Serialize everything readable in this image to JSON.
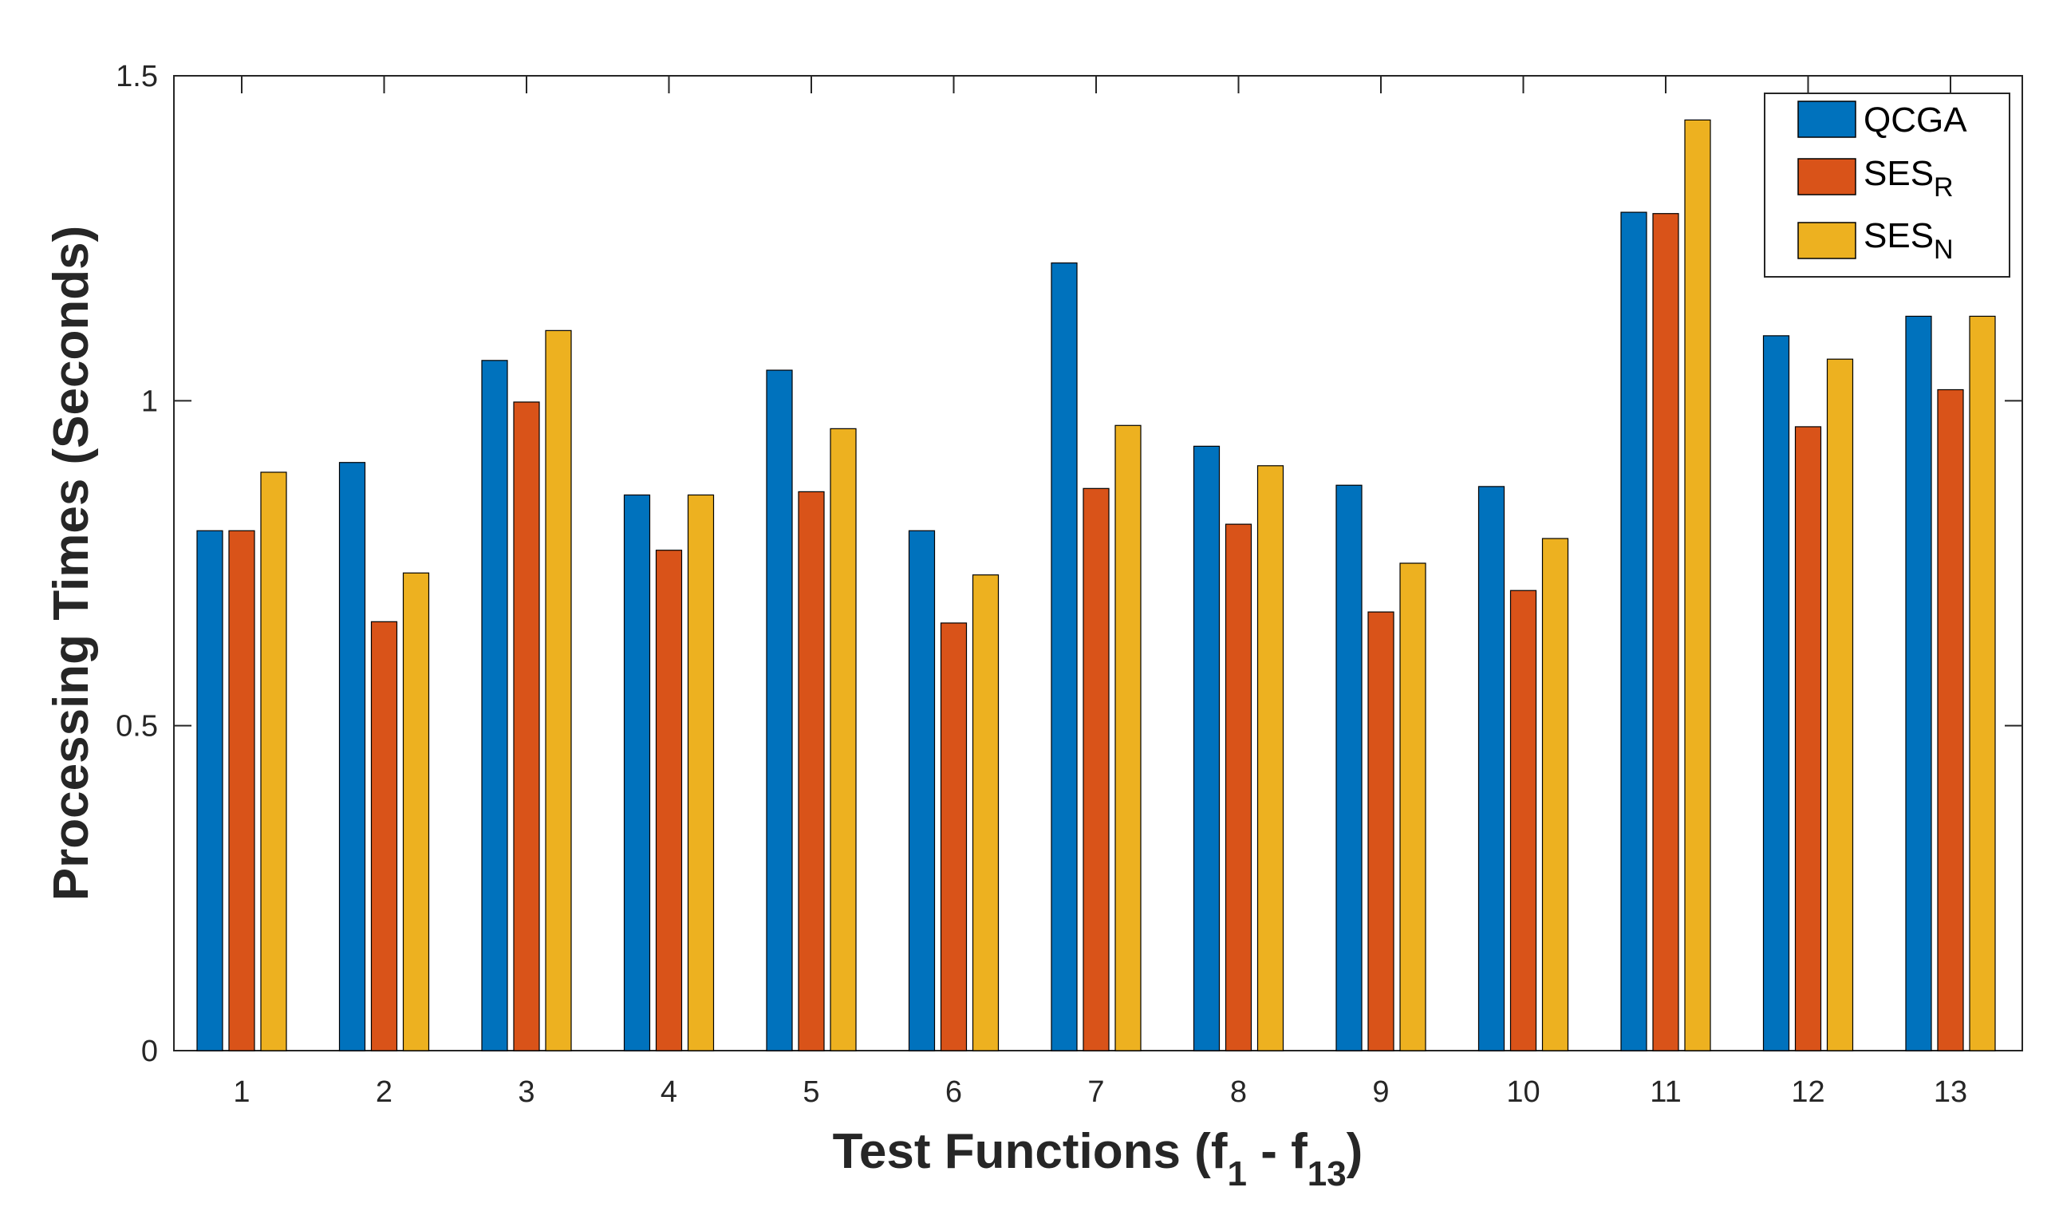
{
  "chart_data": {
    "type": "bar",
    "categories": [
      "1",
      "2",
      "3",
      "4",
      "5",
      "6",
      "7",
      "8",
      "9",
      "10",
      "11",
      "12",
      "13"
    ],
    "series": [
      {
        "name": "QCGA",
        "color": "#0072BD",
        "values": [
          0.8,
          0.905,
          1.062,
          0.855,
          1.047,
          0.8,
          1.212,
          0.93,
          0.87,
          0.868,
          1.29,
          1.1,
          1.13
        ]
      },
      {
        "name": "SES",
        "subscript": "R",
        "color": "#D95319",
        "values": [
          0.8,
          0.66,
          0.998,
          0.77,
          0.86,
          0.658,
          0.865,
          0.81,
          0.675,
          0.708,
          1.288,
          0.96,
          1.017
        ]
      },
      {
        "name": "SES",
        "subscript": "N",
        "color": "#EDB120",
        "values": [
          0.89,
          0.735,
          1.108,
          0.855,
          0.957,
          0.732,
          0.962,
          0.9,
          0.75,
          0.788,
          1.432,
          1.064,
          1.13
        ]
      }
    ],
    "xlabel": {
      "prefix": "Test Functions (f",
      "sub1": "1",
      "mid": " - f",
      "sub2": "13",
      "suffix": ")"
    },
    "ylabel": "Processing Times (Seconds)",
    "ylim": [
      0,
      1.5
    ],
    "yticks": [
      0,
      0.5,
      1,
      1.5
    ],
    "ytick_labels": [
      "0",
      "0.5",
      "1",
      "1.5"
    ],
    "grid": false,
    "legend_position": "top-right"
  }
}
